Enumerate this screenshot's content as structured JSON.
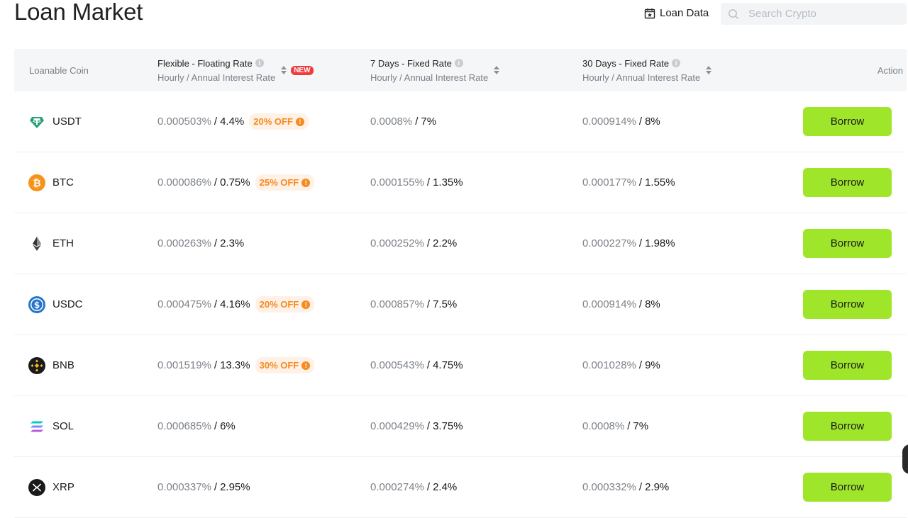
{
  "header": {
    "title": "Loan Market",
    "loan_data_label": "Loan Data",
    "search_placeholder": "Search Crypto"
  },
  "columns": {
    "coin": "Loanable Coin",
    "flexible_title": "Flexible - Floating Rate",
    "flexible_sub": "Hourly / Annual Interest Rate",
    "new_badge": "NEW",
    "fixed7_title": "7 Days - Fixed Rate",
    "fixed7_sub": "Hourly / Annual Interest Rate",
    "fixed30_title": "30 Days - Fixed Rate",
    "fixed30_sub": "Hourly / Annual Interest Rate",
    "action": "Action"
  },
  "rows": [
    {
      "coin": "USDT",
      "flex_h": "0.000503%",
      "flex_a": "4.4%",
      "discount": "20% OFF",
      "d7_h": "0.0008%",
      "d7_a": "7%",
      "d30_h": "0.000914%",
      "d30_a": "8%",
      "action": "Borrow"
    },
    {
      "coin": "BTC",
      "flex_h": "0.000086%",
      "flex_a": "0.75%",
      "discount": "25% OFF",
      "d7_h": "0.000155%",
      "d7_a": "1.35%",
      "d30_h": "0.000177%",
      "d30_a": "1.55%",
      "action": "Borrow"
    },
    {
      "coin": "ETH",
      "flex_h": "0.000263%",
      "flex_a": "2.3%",
      "discount": "",
      "d7_h": "0.000252%",
      "d7_a": "2.2%",
      "d30_h": "0.000227%",
      "d30_a": "1.98%",
      "action": "Borrow"
    },
    {
      "coin": "USDC",
      "flex_h": "0.000475%",
      "flex_a": "4.16%",
      "discount": "20% OFF",
      "d7_h": "0.000857%",
      "d7_a": "7.5%",
      "d30_h": "0.000914%",
      "d30_a": "8%",
      "action": "Borrow"
    },
    {
      "coin": "BNB",
      "flex_h": "0.001519%",
      "flex_a": "13.3%",
      "discount": "30% OFF",
      "d7_h": "0.000543%",
      "d7_a": "4.75%",
      "d30_h": "0.001028%",
      "d30_a": "9%",
      "action": "Borrow"
    },
    {
      "coin": "SOL",
      "flex_h": "0.000685%",
      "flex_a": "6%",
      "discount": "",
      "d7_h": "0.000429%",
      "d7_a": "3.75%",
      "d30_h": "0.0008%",
      "d30_a": "7%",
      "action": "Borrow"
    },
    {
      "coin": "XRP",
      "flex_h": "0.000337%",
      "flex_a": "2.95%",
      "discount": "",
      "d7_h": "0.000274%",
      "d7_a": "2.4%",
      "d30_h": "0.000332%",
      "d30_a": "2.9%",
      "action": "Borrow"
    }
  ],
  "colors": {
    "accent": "#9fe62a",
    "discount_text": "#f58a1f",
    "discount_bg": "#fff1e6",
    "new_badge": "#ef3b3b"
  }
}
